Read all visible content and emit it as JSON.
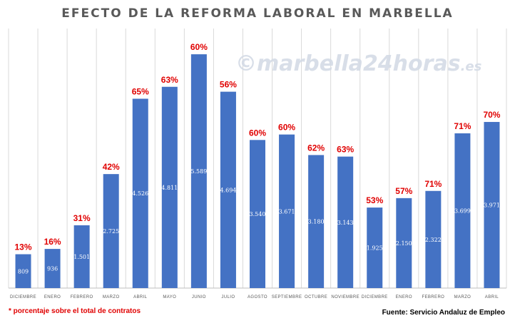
{
  "watermark": {
    "symbol": "©",
    "text": "marbella",
    "accent": "24horas",
    "suffix": ".es"
  },
  "footnote": "* porcentaje sobre el total de contratos",
  "source": "Fuente: Servicio Andaluz de Empleo",
  "colors": {
    "bar": "#4472c4",
    "percent_label": "#e00000",
    "bar_label": "#ffffff",
    "grid": "#d9d9d9",
    "title": "#595959"
  },
  "chart_data": {
    "type": "bar",
    "title": "EFECTO DE LA REFORMA LABORAL EN MARBELLA",
    "xlabel": "",
    "ylabel": "",
    "ylim": [
      0,
      6000
    ],
    "grid": true,
    "categories": [
      "DICIEMBRE",
      "ENERO",
      "FEBRERO",
      "MARZO",
      "ABRIL",
      "MAYO",
      "JUNIO",
      "JULIO",
      "AGOSTO",
      "SEPTIEMBRE",
      "OCTUBRE",
      "NOVIEMBRE",
      "DICIEMBRE",
      "ENERO",
      "FEBRERO",
      "MARZO",
      "ABRIL"
    ],
    "values": [
      809,
      936,
      1501,
      2725,
      4526,
      4811,
      5589,
      4694,
      3540,
      3671,
      3180,
      3143,
      1925,
      2150,
      2322,
      3699,
      3971
    ],
    "value_labels": [
      "809",
      "936",
      "1.501",
      "2.725",
      "4.526",
      "4.811",
      "5.589",
      "4.694",
      "3.540",
      "3.671",
      "3.180",
      "3.143",
      "1.925",
      "2.150",
      "2.322",
      "3.699",
      "3.971"
    ],
    "percent_labels": [
      "13%",
      "16%",
      "31%",
      "42%",
      "65%",
      "63%",
      "60%",
      "56%",
      "60%",
      "60%",
      "62%",
      "63%",
      "53%",
      "57%",
      "71%",
      "71%",
      "70%"
    ]
  }
}
